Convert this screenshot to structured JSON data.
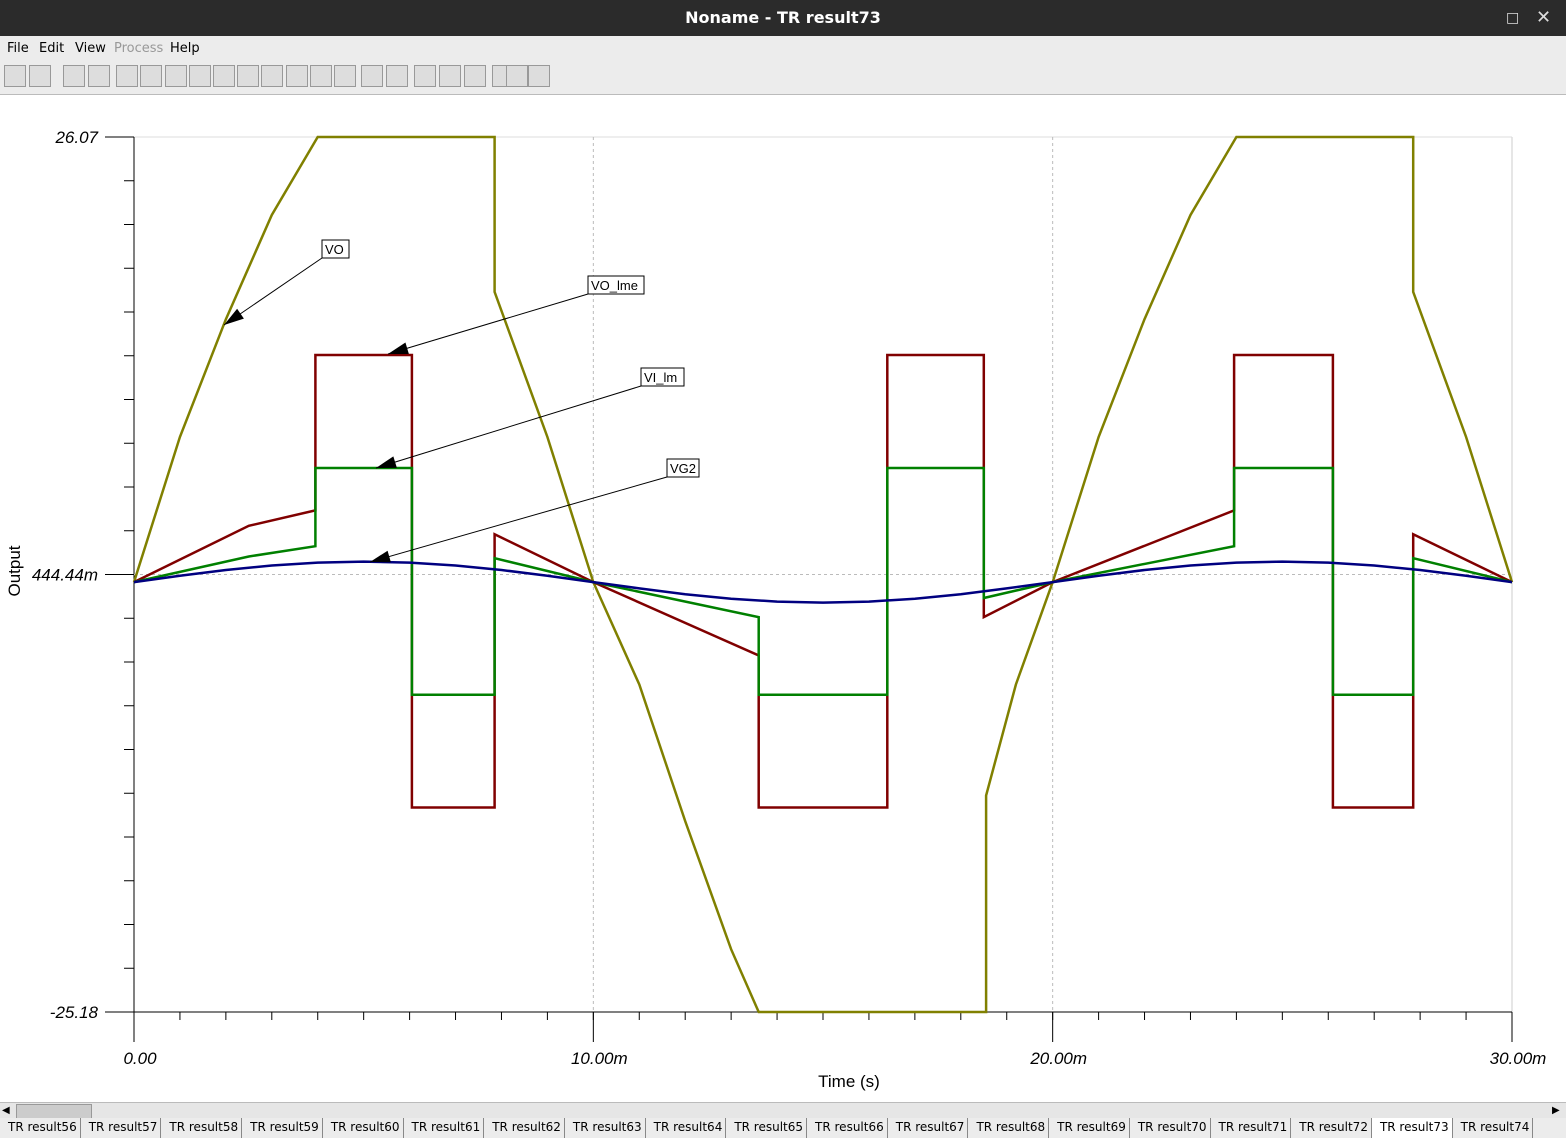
{
  "window": {
    "title": "Noname - TR result73"
  },
  "menu": [
    "File",
    "Edit",
    "View",
    "Process",
    "Help"
  ],
  "tabs": [
    "TR result56",
    "TR result57",
    "TR result58",
    "TR result59",
    "TR result60",
    "TR result61",
    "TR result62",
    "TR result63",
    "TR result64",
    "TR result65",
    "TR result66",
    "TR result67",
    "TR result68",
    "TR result69",
    "TR result70",
    "TR result71",
    "TR result72",
    "TR result73",
    "TR result74"
  ],
  "active_tab": "TR result73",
  "chart_data": {
    "type": "line",
    "xlabel": "Time (s)",
    "ylabel": "Output",
    "xlim": [
      0,
      0.03
    ],
    "xticks": [
      {
        "value": 0,
        "label": "0.00"
      },
      {
        "value": 0.01,
        "label": "10.00m"
      },
      {
        "value": 0.02,
        "label": "20.00m"
      },
      {
        "value": 0.03,
        "label": "30.00m"
      }
    ],
    "ylim": [
      -25.18,
      26.07
    ],
    "yticks": [
      {
        "value": -25.18,
        "label": "-25.18"
      },
      {
        "value": 0.44444,
        "label": "444.44m"
      },
      {
        "value": 26.07,
        "label": "26.07"
      }
    ],
    "grid": true,
    "series": [
      {
        "name": "VO",
        "color": "#808000",
        "x": [
          0,
          0.001,
          0.002,
          0.003,
          0.004,
          0.00785,
          0.00785,
          0.009,
          0.01,
          0.011,
          0.012,
          0.013,
          0.0136,
          0.01855,
          0.01855,
          0.0192,
          0.02,
          0.021,
          0.022,
          0.023,
          0.024,
          0.02785,
          0.02785,
          0.029,
          0.03
        ],
        "values": [
          0,
          8.5,
          15.4,
          21.5,
          26.07,
          26.07,
          17,
          8.5,
          0,
          -6,
          -14,
          -21.5,
          -25.18,
          -25.18,
          -12.5,
          -6,
          0,
          8.5,
          15.4,
          21.5,
          26.07,
          26.07,
          17,
          8.5,
          0
        ]
      },
      {
        "name": "VO_lme",
        "color": "#800000",
        "x": [
          0,
          0.0025,
          0.00395,
          0.00395,
          0.00605,
          0.00605,
          0.00785,
          0.00785,
          0.01,
          0.0136,
          0.0136,
          0.0164,
          0.0164,
          0.0185,
          0.0185,
          0.02,
          0.02395,
          0.02395,
          0.0261,
          0.0261,
          0.02785,
          0.02785,
          0.03
        ],
        "values": [
          0,
          3.3,
          4.2,
          13.3,
          13.3,
          -13.2,
          -13.2,
          2.8,
          0,
          -4.3,
          -13.2,
          -13.2,
          13.3,
          13.3,
          -2.05,
          0,
          4.2,
          13.3,
          13.3,
          -13.2,
          -13.2,
          2.8,
          0
        ]
      },
      {
        "name": "VI_lm",
        "color": "#008000",
        "x": [
          0,
          0.0025,
          0.00395,
          0.00395,
          0.00605,
          0.00605,
          0.00785,
          0.00785,
          0.01,
          0.0136,
          0.0136,
          0.0164,
          0.0164,
          0.0185,
          0.0185,
          0.02,
          0.02395,
          0.02395,
          0.0261,
          0.0261,
          0.02785,
          0.02785,
          0.03
        ],
        "values": [
          0,
          1.5,
          2.1,
          6.68,
          6.68,
          -6.6,
          -6.6,
          1.4,
          0,
          -2.05,
          -6.6,
          -6.6,
          6.68,
          6.68,
          -0.93,
          0,
          2.1,
          6.68,
          6.68,
          -6.6,
          -6.6,
          1.4,
          0
        ]
      },
      {
        "name": "VG2",
        "color": "#000080",
        "x": [
          0,
          0.001,
          0.002,
          0.003,
          0.004,
          0.005,
          0.006,
          0.007,
          0.008,
          0.009,
          0.01,
          0.011,
          0.012,
          0.013,
          0.014,
          0.015,
          0.016,
          0.017,
          0.018,
          0.019,
          0.02,
          0.021,
          0.022,
          0.023,
          0.024,
          0.025,
          0.026,
          0.027,
          0.028,
          0.029,
          0.03
        ],
        "values": [
          0,
          0.37,
          0.71,
          0.97,
          1.14,
          1.2,
          1.14,
          0.97,
          0.71,
          0.37,
          0,
          -0.37,
          -0.71,
          -0.97,
          -1.14,
          -1.2,
          -1.14,
          -0.97,
          -0.71,
          -0.37,
          0,
          0.37,
          0.71,
          0.97,
          1.14,
          1.2,
          1.14,
          0.97,
          0.71,
          0.37,
          0
        ]
      }
    ]
  }
}
